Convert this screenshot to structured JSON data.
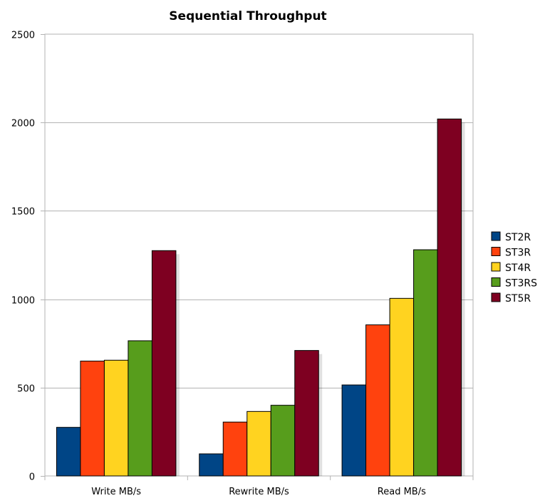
{
  "chart_data": {
    "type": "bar",
    "title": "Sequential Throughput",
    "xlabel": "",
    "ylabel": "",
    "categories": [
      "Write MB/s",
      "Rewrite MB/s",
      "Read MB/s"
    ],
    "ylim": [
      0,
      2500
    ],
    "yticks": [
      0,
      500,
      1000,
      1500,
      2000,
      2500
    ],
    "grid": true,
    "legend_position": "right",
    "series": [
      {
        "name": "ST2R",
        "color": "#004586",
        "values": [
          275,
          125,
          515
        ]
      },
      {
        "name": "ST3R",
        "color": "#ff420e",
        "values": [
          650,
          305,
          855
        ]
      },
      {
        "name": "ST4R",
        "color": "#ffd320",
        "values": [
          655,
          365,
          1005
        ]
      },
      {
        "name": "ST3RS",
        "color": "#579d1c",
        "values": [
          765,
          400,
          1280
        ]
      },
      {
        "name": "ST5R",
        "color": "#7e0021",
        "values": [
          1275,
          710,
          2020
        ]
      }
    ]
  }
}
